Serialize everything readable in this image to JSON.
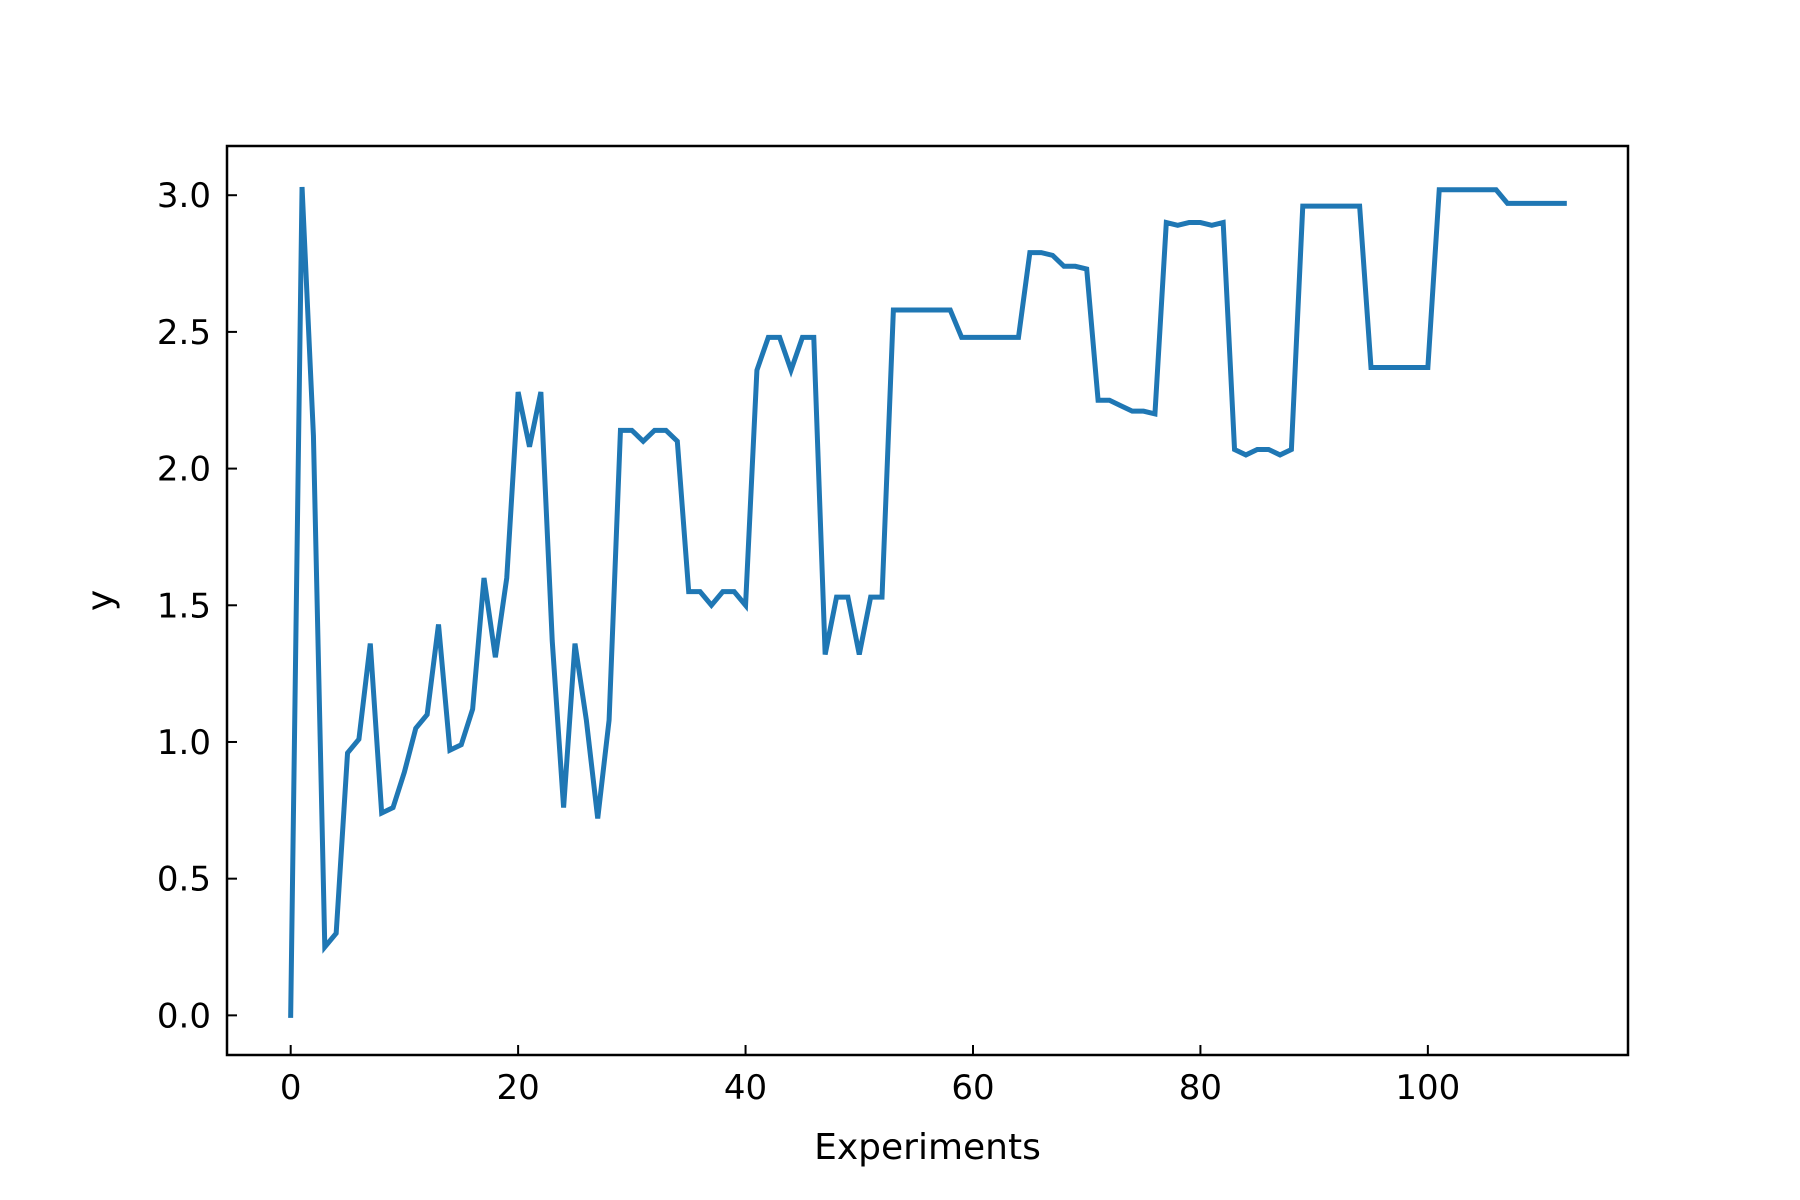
{
  "chart_data": {
    "type": "line",
    "title": "",
    "xlabel": "Experiments",
    "ylabel": "y",
    "xlim": [
      -5.6,
      117.6
    ],
    "ylim": [
      -0.145,
      3.18
    ],
    "xticks": [
      0,
      20,
      40,
      60,
      80,
      100
    ],
    "yticks": [
      0.0,
      0.5,
      1.0,
      1.5,
      2.0,
      2.5,
      3.0
    ],
    "xtick_labels": [
      "0",
      "20",
      "40",
      "60",
      "80",
      "100"
    ],
    "ytick_labels": [
      "0.0",
      "0.5",
      "1.0",
      "1.5",
      "2.0",
      "2.5",
      "3.0"
    ],
    "grid": false,
    "legend": "none",
    "series": [
      {
        "color": "#1f77b4",
        "x": [
          0,
          1,
          2,
          3,
          4,
          5,
          6,
          7,
          8,
          9,
          10,
          11,
          12,
          13,
          14,
          15,
          16,
          17,
          18,
          19,
          20,
          21,
          22,
          23,
          24,
          25,
          26,
          27,
          28,
          29,
          30,
          31,
          32,
          33,
          34,
          35,
          36,
          37,
          38,
          39,
          40,
          41,
          42,
          43,
          44,
          45,
          46,
          47,
          48,
          49,
          50,
          51,
          52,
          53,
          54,
          55,
          56,
          57,
          58,
          59,
          60,
          61,
          62,
          63,
          64,
          65,
          66,
          67,
          68,
          69,
          70,
          71,
          72,
          73,
          74,
          75,
          76,
          77,
          78,
          79,
          80,
          81,
          82,
          83,
          84,
          85,
          86,
          87,
          88,
          89,
          90,
          91,
          92,
          93,
          94,
          95,
          96,
          97,
          98,
          99,
          100,
          101,
          102,
          103,
          104,
          105,
          106,
          107,
          108,
          109,
          110,
          111,
          112
        ],
        "y": [
          0.0,
          3.03,
          2.12,
          0.25,
          0.3,
          0.96,
          1.01,
          1.36,
          0.74,
          0.76,
          0.89,
          1.05,
          1.1,
          1.43,
          0.97,
          0.99,
          1.12,
          1.6,
          1.31,
          1.6,
          2.28,
          2.08,
          2.28,
          1.37,
          0.76,
          1.36,
          1.08,
          0.72,
          1.08,
          2.14,
          2.14,
          2.1,
          2.14,
          2.14,
          2.1,
          1.55,
          1.55,
          1.5,
          1.55,
          1.55,
          1.5,
          2.36,
          2.48,
          2.48,
          2.36,
          2.48,
          2.48,
          1.32,
          1.53,
          1.53,
          1.32,
          1.53,
          1.53,
          2.58,
          2.58,
          2.58,
          2.58,
          2.58,
          2.58,
          2.48,
          2.48,
          2.48,
          2.48,
          2.48,
          2.48,
          2.79,
          2.79,
          2.78,
          2.74,
          2.74,
          2.73,
          2.25,
          2.25,
          2.23,
          2.21,
          2.21,
          2.2,
          2.9,
          2.89,
          2.9,
          2.9,
          2.89,
          2.9,
          2.07,
          2.05,
          2.07,
          2.07,
          2.05,
          2.07,
          2.96,
          2.96,
          2.96,
          2.96,
          2.96,
          2.96,
          2.37,
          2.37,
          2.37,
          2.37,
          2.37,
          2.37,
          3.02,
          3.02,
          3.02,
          3.02,
          3.02,
          3.02,
          2.97,
          2.97,
          2.97,
          2.97,
          2.97,
          2.97
        ]
      }
    ]
  }
}
